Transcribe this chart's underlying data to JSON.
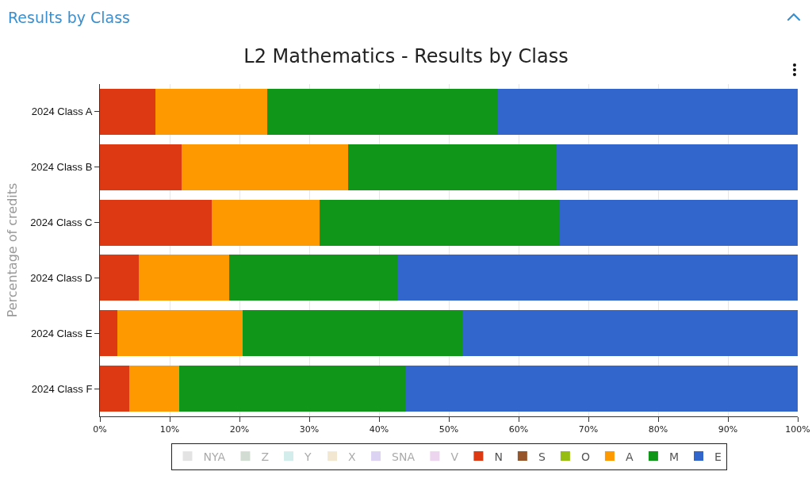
{
  "chart_data": {
    "type": "bar",
    "orientation": "horizontal",
    "stacked": true,
    "title": "L2 Mathematics - Results by Class",
    "ylabel": "Percentage of credits",
    "annotations": [
      "Results by Class"
    ],
    "categories": [
      "2024 Class A",
      "2024 Class B",
      "2024 Class C",
      "2024 Class D",
      "2024 Class E",
      "2024 Class F"
    ],
    "series": [
      {
        "name": "NYA",
        "color": "#c8c8c8",
        "values": [
          null,
          null,
          null,
          null,
          null,
          null
        ]
      },
      {
        "name": "Z",
        "color": "#a9bba6",
        "values": [
          null,
          null,
          null,
          null,
          null,
          null
        ]
      },
      {
        "name": "Y",
        "color": "#a6dcd8",
        "values": [
          null,
          null,
          null,
          null,
          null,
          null
        ]
      },
      {
        "name": "X",
        "color": "#e6d3a6",
        "values": [
          null,
          null,
          null,
          null,
          null,
          null
        ]
      },
      {
        "name": "SNA",
        "color": "#bba6e6",
        "values": [
          null,
          null,
          null,
          null,
          null,
          null
        ]
      },
      {
        "name": "V",
        "color": "#dcaae0",
        "values": [
          null,
          null,
          null,
          null,
          null,
          null
        ]
      },
      {
        "name": "N",
        "color": "#dd3912",
        "values": [
          8,
          11.7,
          16,
          5.6,
          2.5,
          4.2
        ]
      },
      {
        "name": "S",
        "color": "#96552b",
        "values": [
          0,
          0,
          0,
          0,
          0,
          0
        ]
      },
      {
        "name": "O",
        "color": "#95bd12",
        "values": [
          0,
          0,
          0,
          0,
          0,
          0
        ]
      },
      {
        "name": "A",
        "color": "#ff9900",
        "values": [
          16,
          23.9,
          15.5,
          12.9,
          18,
          7.2
        ]
      },
      {
        "name": "M",
        "color": "#109618",
        "values": [
          33,
          29.9,
          34.4,
          24.1,
          31.4,
          32.4
        ]
      },
      {
        "name": "E",
        "color": "#3366cc",
        "values": [
          43,
          34.5,
          34.1,
          57.4,
          48.1,
          56.2
        ]
      }
    ],
    "xlim": [
      0,
      100
    ],
    "xticks": [
      {
        "value": 0,
        "label": "0%"
      },
      {
        "value": 10,
        "label": "10%"
      },
      {
        "value": 20,
        "label": "20%"
      },
      {
        "value": 30,
        "label": "30%"
      },
      {
        "value": 40,
        "label": "40%"
      },
      {
        "value": 50,
        "label": "50%"
      },
      {
        "value": 60,
        "label": "60%"
      },
      {
        "value": 70,
        "label": "70%"
      },
      {
        "value": 80,
        "label": "80%"
      },
      {
        "value": 90,
        "label": "90%"
      },
      {
        "value": 100,
        "label": "100%"
      }
    ],
    "grid": "x",
    "legend": "bottom"
  }
}
